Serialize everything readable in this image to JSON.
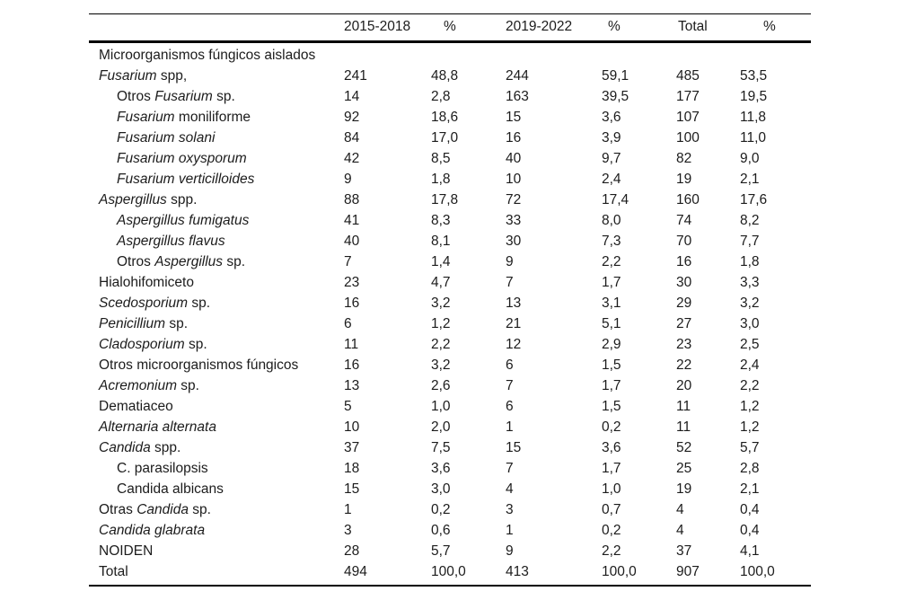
{
  "document": {
    "background": "#ffffff",
    "text_color": "#1c1c1c",
    "rule_color": "#000000"
  },
  "table": {
    "column_headers": [
      "2015-2018",
      "%",
      "2019-2022",
      "%",
      "Total",
      "%"
    ],
    "rows": [
      {
        "label": [
          {
            "text": "Microorganismos fúngicos aislados",
            "italic": false
          }
        ],
        "indent": 0,
        "values": [
          "",
          "",
          "",
          "",
          "",
          ""
        ]
      },
      {
        "label": [
          {
            "text": "Fusarium",
            "italic": true
          },
          {
            "text": " spp,",
            "italic": false
          }
        ],
        "indent": 0,
        "values": [
          "241",
          "48,8",
          "244",
          "59,1",
          "485",
          "53,5"
        ]
      },
      {
        "label": [
          {
            "text": "Otros ",
            "italic": false
          },
          {
            "text": "Fusarium",
            "italic": true
          },
          {
            "text": " sp.",
            "italic": false
          }
        ],
        "indent": 1,
        "values": [
          "14",
          "2,8",
          "163",
          "39,5",
          "177",
          "19,5"
        ]
      },
      {
        "label": [
          {
            "text": "Fusarium",
            "italic": true
          },
          {
            "text": " moniliforme",
            "italic": false
          }
        ],
        "indent": 1,
        "values": [
          "92",
          "18,6",
          "15",
          "3,6",
          "107",
          "11,8"
        ]
      },
      {
        "label": [
          {
            "text": "Fusarium solani",
            "italic": true
          }
        ],
        "indent": 1,
        "values": [
          "84",
          "17,0",
          "16",
          "3,9",
          "100",
          "11,0"
        ]
      },
      {
        "label": [
          {
            "text": "Fusarium oxysporum",
            "italic": true
          }
        ],
        "indent": 1,
        "values": [
          "42",
          "8,5",
          "40",
          "9,7",
          "82",
          "9,0"
        ]
      },
      {
        "label": [
          {
            "text": "Fusarium verticilloides",
            "italic": true
          }
        ],
        "indent": 1,
        "values": [
          "9",
          "1,8",
          "10",
          "2,4",
          "19",
          "2,1"
        ]
      },
      {
        "label": [
          {
            "text": "Aspergillus",
            "italic": true
          },
          {
            "text": " spp.",
            "italic": false
          }
        ],
        "indent": 0,
        "values": [
          "88",
          "17,8",
          "72",
          "17,4",
          "160",
          "17,6"
        ]
      },
      {
        "label": [
          {
            "text": "Aspergillus fumigatus",
            "italic": true
          }
        ],
        "indent": 1,
        "values": [
          "41",
          "8,3",
          "33",
          "8,0",
          "74",
          "8,2"
        ]
      },
      {
        "label": [
          {
            "text": "Aspergillus flavus",
            "italic": true
          }
        ],
        "indent": 1,
        "values": [
          "40",
          "8,1",
          "30",
          "7,3",
          "70",
          "7,7"
        ]
      },
      {
        "label": [
          {
            "text": "Otros ",
            "italic": false
          },
          {
            "text": "Aspergillus",
            "italic": true
          },
          {
            "text": " sp.",
            "italic": false
          }
        ],
        "indent": 1,
        "values": [
          "7",
          "1,4",
          "9",
          "2,2",
          "16",
          "1,8"
        ]
      },
      {
        "label": [
          {
            "text": "Hialohifomiceto",
            "italic": false
          }
        ],
        "indent": 0,
        "values": [
          "23",
          "4,7",
          "7",
          "1,7",
          "30",
          "3,3"
        ]
      },
      {
        "label": [
          {
            "text": "Scedosporium",
            "italic": true
          },
          {
            "text": " sp.",
            "italic": false
          }
        ],
        "indent": 0,
        "values": [
          "16",
          "3,2",
          "13",
          "3,1",
          "29",
          "3,2"
        ]
      },
      {
        "label": [
          {
            "text": "Penicillium",
            "italic": true
          },
          {
            "text": " sp.",
            "italic": false
          }
        ],
        "indent": 0,
        "values": [
          "6",
          "1,2",
          "21",
          "5,1",
          "27",
          "3,0"
        ]
      },
      {
        "label": [
          {
            "text": "Cladosporium",
            "italic": true
          },
          {
            "text": " sp.",
            "italic": false
          }
        ],
        "indent": 0,
        "values": [
          "11",
          "2,2",
          "12",
          "2,9",
          "23",
          "2,5"
        ]
      },
      {
        "label": [
          {
            "text": "Otros microorganismos fúngicos",
            "italic": false
          }
        ],
        "indent": 0,
        "values": [
          "16",
          "3,2",
          "6",
          "1,5",
          "22",
          "2,4"
        ]
      },
      {
        "label": [
          {
            "text": "Acremonium",
            "italic": true
          },
          {
            "text": " sp.",
            "italic": false
          }
        ],
        "indent": 0,
        "values": [
          "13",
          "2,6",
          "7",
          "1,7",
          "20",
          "2,2"
        ]
      },
      {
        "label": [
          {
            "text": "Dematiaceo",
            "italic": false
          }
        ],
        "indent": 0,
        "values": [
          "5",
          "1,0",
          "6",
          "1,5",
          "11",
          "1,2"
        ]
      },
      {
        "label": [
          {
            "text": "Alternaria alternata",
            "italic": true
          }
        ],
        "indent": 0,
        "values": [
          "10",
          "2,0",
          "1",
          "0,2",
          "11",
          "1,2"
        ]
      },
      {
        "label": [
          {
            "text": "Candida",
            "italic": true
          },
          {
            "text": " spp.",
            "italic": false
          }
        ],
        "indent": 0,
        "values": [
          "37",
          "7,5",
          "15",
          "3,6",
          "52",
          "5,7"
        ]
      },
      {
        "label": [
          {
            "text": "C. parasilopsis",
            "italic": false
          }
        ],
        "indent": 1,
        "values": [
          "18",
          "3,6",
          "7",
          "1,7",
          "25",
          "2,8"
        ]
      },
      {
        "label": [
          {
            "text": "Candida albicans",
            "italic": false
          }
        ],
        "indent": 1,
        "values": [
          "15",
          "3,0",
          "4",
          "1,0",
          "19",
          "2,1"
        ]
      },
      {
        "label": [
          {
            "text": "Otras ",
            "italic": false
          },
          {
            "text": "Candida",
            "italic": true
          },
          {
            "text": " sp.",
            "italic": false
          }
        ],
        "indent": 0,
        "values": [
          "1",
          "0,2",
          "3",
          "0,7",
          "4",
          "0,4"
        ]
      },
      {
        "label": [
          {
            "text": "Candida glabrata",
            "italic": true
          }
        ],
        "indent": 0,
        "values": [
          "3",
          "0,6",
          "1",
          "0,2",
          "4",
          "0,4"
        ]
      },
      {
        "label": [
          {
            "text": "NOIDEN",
            "italic": false
          }
        ],
        "indent": 0,
        "values": [
          "28",
          "5,7",
          "9",
          "2,2",
          "37",
          "4,1"
        ]
      },
      {
        "label": [
          {
            "text": "Total",
            "italic": false
          }
        ],
        "indent": 0,
        "values": [
          "494",
          "100,0",
          "413",
          "100,0",
          "907",
          "100,0"
        ]
      }
    ]
  }
}
